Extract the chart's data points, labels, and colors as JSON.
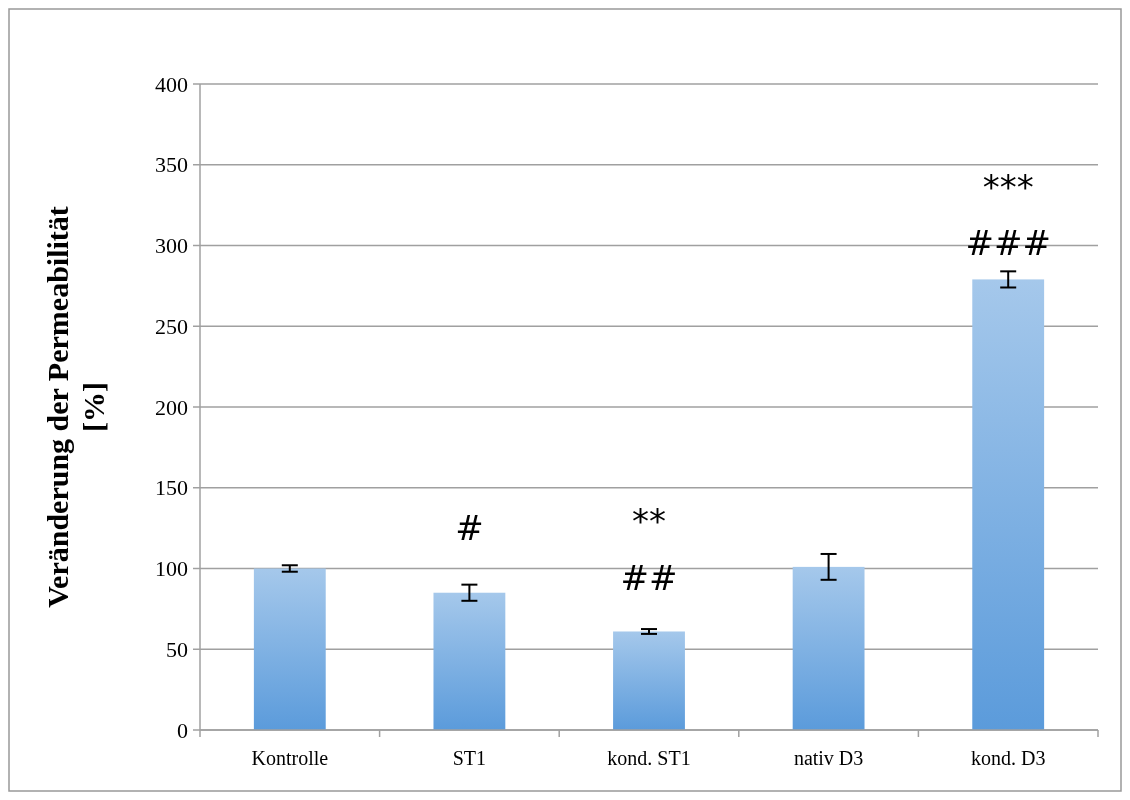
{
  "chart_data": {
    "type": "bar",
    "ylabel": "Veränderung der Permeabilität [%]",
    "categories": [
      "Kontrolle",
      "ST1",
      "kond. ST1",
      "nativ D3",
      "kond. D3"
    ],
    "values": [
      100,
      85,
      61,
      101,
      279
    ],
    "errors": [
      2,
      5,
      1.5,
      8,
      5
    ],
    "color": "#5b9bdb",
    "ylim": [
      0,
      400
    ],
    "yticks": [
      0,
      50,
      100,
      150,
      200,
      250,
      300,
      350,
      400
    ],
    "grid": "y",
    "annotations": [
      "#",
      "**",
      "##",
      "***",
      "###"
    ]
  }
}
